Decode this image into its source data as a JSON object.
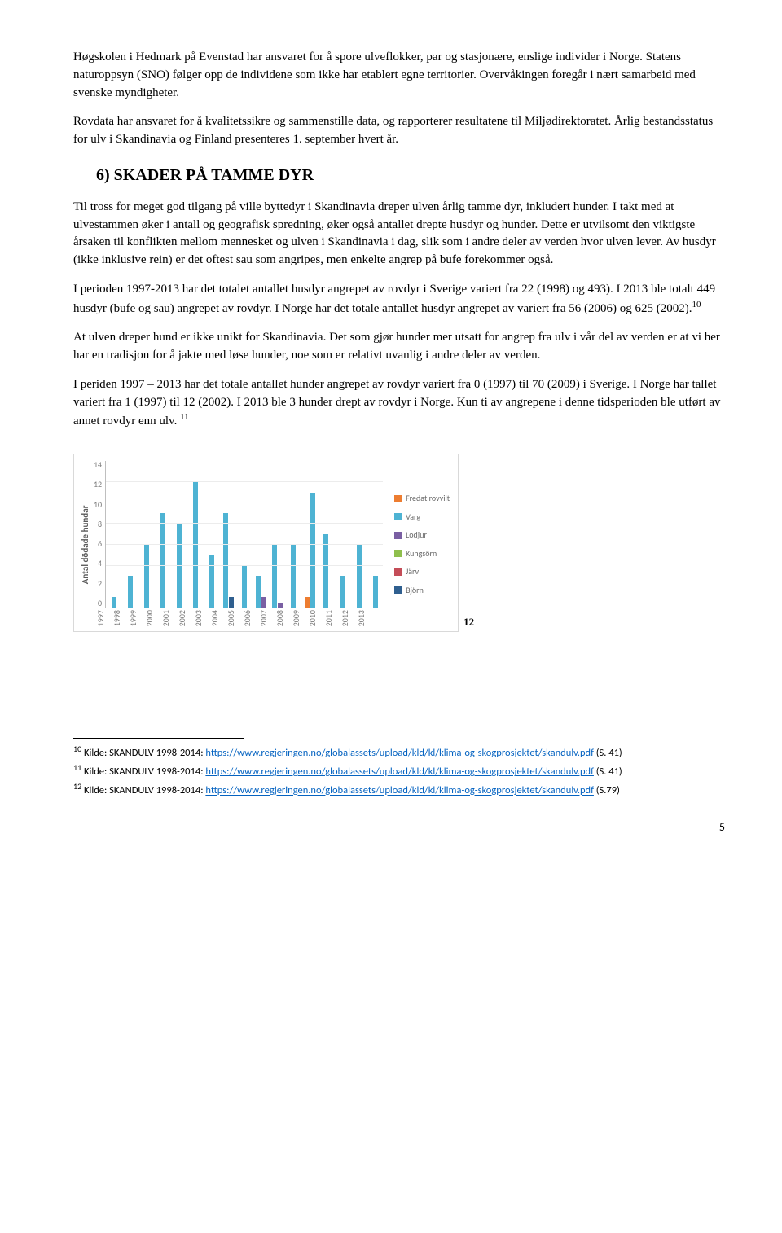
{
  "paragraphs": {
    "p1": "Høgskolen i Hedmark på Evenstad har ansvaret for å spore ulveflokker, par og stasjonære, enslige individer i Norge. Statens naturoppsyn (SNO) følger opp de individene som ikke har etablert egne territorier. Overvåkingen foregår i nært samarbeid med svenske myndigheter.",
    "p2": "Rovdata har ansvaret for å kvalitetssikre og sammenstille data, og rapporterer resultatene til Miljødirektoratet. Årlig bestandsstatus for ulv i Skandinavia og Finland presenteres 1. september hvert år.",
    "p3": "Til tross for meget god tilgang på ville byttedyr i Skandinavia dreper ulven årlig tamme dyr, inkludert hunder. I takt med at ulvestammen øker i antall og geografisk spredning, øker også antallet drepte husdyr og hunder. Dette er utvilsomt den viktigste årsaken til konflikten mellom mennesket og ulven i Skandinavia i dag, slik som i andre deler av verden hvor ulven lever. Av husdyr (ikke inklusive rein) er det oftest sau som angripes, men enkelte angrep på bufe forekommer også.",
    "p4a": "I perioden 1997-2013 har det totalet antallet husdyr angrepet av rovdyr i Sverige variert fra 22 (1998) og 493). I 2013 ble totalt 449 husdyr (bufe og sau) angrepet av rovdyr. I Norge har det totale antallet husdyr angrepet av variert fra 56 (2006) og 625 (2002).",
    "p4_sup": "10",
    "p5": "At ulven dreper hund er ikke unikt for Skandinavia. Det som gjør hunder mer utsatt for angrep fra ulv i vår del av verden er at vi her har en tradisjon for å jakte med løse hunder, noe som er relativt uvanlig i andre deler av verden.",
    "p6a": "I periden 1997 – 2013 har det totale antallet hunder angrepet av rovdyr variert fra 0 (1997) til 70 (2009) i Sverige. I Norge har tallet variert fra 1 (1997) til 12 (2002). I 2013 ble 3 hunder drept av rovdyr i Norge. Kun ti av angrepene i denne tidsperioden ble utført av annet rovdyr enn ulv. ",
    "p6_sup": "11"
  },
  "section_title": "6)  SKADER PÅ TAMME DYR",
  "chart": {
    "type": "bar",
    "y_label": "Antal dödade hundar",
    "y_max": 14,
    "y_ticks": [
      14,
      12,
      10,
      8,
      6,
      4,
      2,
      0
    ],
    "years": [
      "1997",
      "1998",
      "1999",
      "2000",
      "2001",
      "2002",
      "2003",
      "2004",
      "2005",
      "2006",
      "2007",
      "2008",
      "2009",
      "2010",
      "2011",
      "2012",
      "2013"
    ],
    "series": [
      {
        "name": "Fredat rovvilt",
        "color": "#ed7d31",
        "values": [
          0,
          0,
          0,
          0,
          0,
          0,
          0,
          0,
          0,
          0,
          0,
          0,
          1,
          0,
          0,
          0,
          0
        ]
      },
      {
        "name": "Varg",
        "color": "#4eb3d3",
        "values": [
          1,
          3,
          6,
          9,
          8,
          12,
          5,
          9,
          4,
          3,
          6,
          6,
          11,
          7,
          3,
          6,
          3
        ]
      },
      {
        "name": "Lodjur",
        "color": "#7a5fa3",
        "values": [
          0,
          0,
          0,
          0,
          0,
          0,
          0,
          0,
          0,
          1,
          0.5,
          0,
          0,
          0,
          0,
          0,
          0
        ]
      },
      {
        "name": "Kungsörn",
        "color": "#8fbf4d",
        "values": [
          0,
          0,
          0,
          0,
          0,
          0,
          0,
          0,
          0,
          0,
          0,
          0,
          0,
          0,
          0,
          0,
          0
        ]
      },
      {
        "name": "Järv",
        "color": "#c44d58",
        "values": [
          0,
          0,
          0,
          0,
          0,
          0,
          0,
          0,
          0,
          0,
          0,
          0,
          0,
          0,
          0,
          0,
          0
        ]
      },
      {
        "name": "Björn",
        "color": "#2f5f8f",
        "values": [
          0,
          0,
          0,
          0,
          0,
          0,
          0,
          1,
          0,
          0,
          0,
          0,
          0,
          0,
          0,
          0,
          0
        ]
      }
    ],
    "grid_color": "#ececec",
    "axis_color": "#bfbfbf",
    "background": "#ffffff",
    "tick_font_size": 10,
    "label_font_size": 11,
    "fig_num": "12"
  },
  "footnotes": {
    "items": [
      {
        "num": "10",
        "prefix": " Kilde: SKANDULV 1998-2014: ",
        "link_text": "https://www.regjeringen.no/globalassets/upload/kld/kl/klima-og-skogprosjektet/skandulv.pdf",
        "suffix": " (S. 41)"
      },
      {
        "num": "11",
        "prefix": " Kilde: SKANDULV 1998-2014: ",
        "link_text": "https://www.regjeringen.no/globalassets/upload/kld/kl/klima-og-skogprosjektet/skandulv.pdf",
        "suffix": " (S. 41)"
      },
      {
        "num": "12",
        "prefix": " Kilde: SKANDULV 1998-2014: ",
        "link_text": "https://www.regjeringen.no/globalassets/upload/kld/kl/klima-og-skogprosjektet/skandulv.pdf",
        "suffix": " (S.79)"
      }
    ]
  },
  "page_number": "5"
}
